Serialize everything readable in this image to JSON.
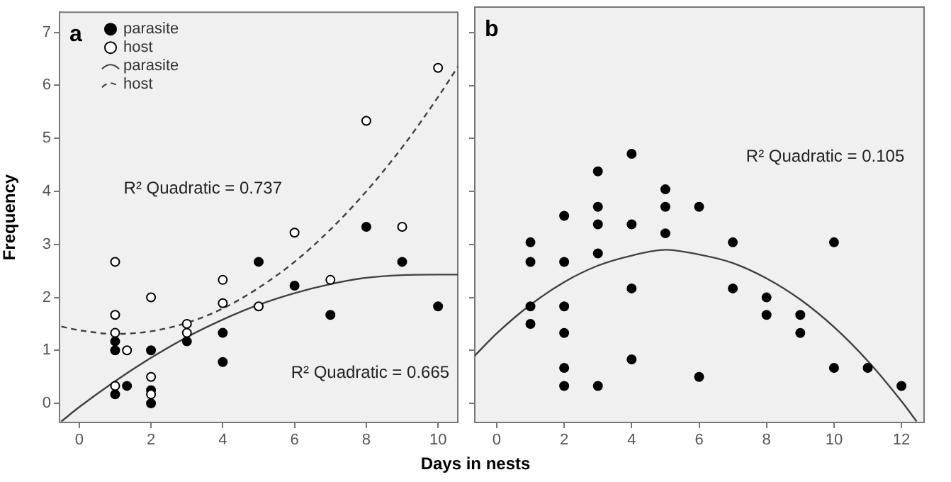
{
  "chart_data": [
    {
      "type": "scatter",
      "title": "a",
      "xlabel": "Days in nests",
      "ylabel": "Frequency",
      "legend": "top left",
      "grid": false,
      "xlim": [
        -0.55,
        10.55
      ],
      "xticks": [
        0,
        2,
        4,
        6,
        8,
        10
      ],
      "ylim": [
        -0.36,
        7.38
      ],
      "yticks": [
        0,
        1,
        2,
        3,
        4,
        5,
        6,
        7
      ],
      "annotations": [
        "R² Quadratic = 0.737",
        "R² Quadratic = 0.665"
      ],
      "series": [
        {
          "name": "parasite",
          "type": "scatter",
          "marker": "circle",
          "color": "#000000",
          "x": [
            1,
            1,
            1,
            1.33,
            2,
            2,
            2,
            3,
            4,
            4,
            5,
            6,
            7,
            8,
            9,
            10
          ],
          "values": [
            1.17,
            1.0,
            0.17,
            0.33,
            1.0,
            0.25,
            0.0,
            1.17,
            1.33,
            0.78,
            2.67,
            2.22,
            1.67,
            3.33,
            2.67,
            1.83
          ]
        },
        {
          "name": "host",
          "type": "scatter",
          "marker": "circle",
          "color": "#ffffff",
          "x": [
            1,
            1,
            1,
            1,
            1.33,
            2,
            2,
            2,
            3,
            3,
            4,
            4,
            5,
            6,
            7,
            8,
            9,
            10
          ],
          "values": [
            2.67,
            1.67,
            1.33,
            0.33,
            1.0,
            2.0,
            0.5,
            0.17,
            1.5,
            1.33,
            2.33,
            1.89,
            1.83,
            3.22,
            2.33,
            5.33,
            3.33,
            6.33
          ]
        },
        {
          "name": "parasite",
          "type": "line",
          "marker": "none",
          "line_style": "solid",
          "color": "#404040",
          "x": [
            -0.5,
            0,
            1,
            2,
            3,
            4,
            5,
            6,
            7,
            8,
            9,
            10,
            10.55
          ],
          "values": [
            -0.34,
            -0.07,
            0.42,
            0.86,
            1.25,
            1.58,
            1.86,
            2.08,
            2.25,
            2.37,
            2.42,
            2.43,
            2.43
          ]
        },
        {
          "name": "host",
          "type": "line",
          "marker": "none",
          "line_style": "dashed",
          "color": "#404040",
          "x": [
            -0.5,
            0,
            1,
            2,
            3,
            4,
            5,
            6,
            7,
            8,
            9,
            10,
            10.55
          ],
          "values": [
            1.45,
            1.38,
            1.31,
            1.36,
            1.52,
            1.79,
            2.18,
            2.67,
            3.28,
            4.0,
            4.83,
            5.78,
            6.35
          ]
        }
      ]
    },
    {
      "type": "scatter",
      "title": "b",
      "tick_labels": "x",
      "grid": false,
      "xlim": [
        -0.65,
        12.67
      ],
      "xticks": [
        0,
        2,
        4,
        6,
        8,
        10,
        12
      ],
      "ylim": [
        -0.36,
        7.48
      ],
      "yticks": [
        0,
        1,
        2,
        3,
        4,
        5,
        6,
        7
      ],
      "annotations": [
        "R² Quadratic = 0.105"
      ],
      "series": [
        {
          "type": "scatter",
          "marker": "circle",
          "color": "#000000",
          "x": [
            1,
            1,
            1,
            1,
            2,
            2,
            2,
            2,
            2,
            2,
            3,
            3,
            3,
            3,
            3,
            4,
            4,
            4,
            4,
            5,
            5,
            5,
            6,
            6,
            7,
            7,
            8,
            8,
            9,
            9,
            10,
            10,
            11,
            12
          ],
          "values": [
            3.04,
            2.67,
            1.83,
            1.5,
            3.54,
            2.67,
            1.83,
            1.33,
            0.67,
            0.33,
            4.38,
            3.71,
            3.38,
            2.83,
            0.33,
            4.71,
            3.38,
            2.17,
            0.83,
            4.04,
            3.71,
            3.21,
            3.71,
            0.5,
            3.04,
            2.17,
            2.0,
            1.67,
            1.67,
            1.33,
            3.04,
            0.67,
            0.67,
            0.33
          ]
        },
        {
          "type": "line",
          "marker": "none",
          "line_style": "solid",
          "color": "#404040",
          "x": [
            -0.65,
            0,
            1,
            2,
            3,
            4,
            5,
            6,
            7,
            8,
            9,
            10,
            11,
            12,
            12.45
          ],
          "values": [
            0.9,
            1.32,
            1.86,
            2.29,
            2.6,
            2.79,
            2.9,
            2.81,
            2.65,
            2.36,
            1.96,
            1.44,
            0.8,
            0.04,
            -0.34
          ]
        }
      ]
    }
  ]
}
